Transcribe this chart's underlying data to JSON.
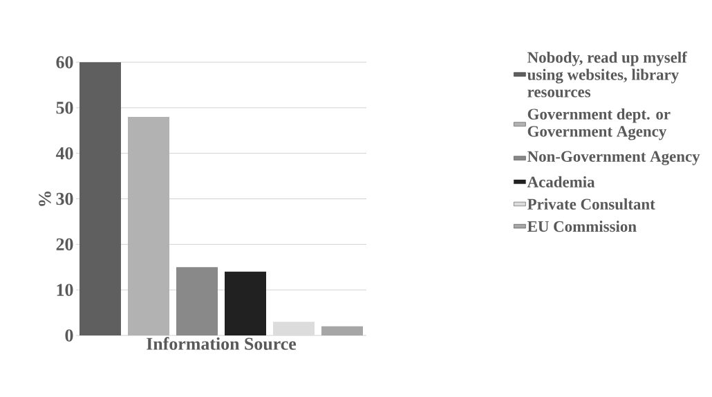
{
  "chart_data": {
    "type": "bar",
    "ylabel": "%",
    "xlabel": "Information Source",
    "categories": [
      null,
      null,
      null,
      null,
      null,
      null
    ],
    "series": [
      {
        "name": "Nobody, read up myself using websites, library resources",
        "color": "#5f5f5f",
        "values": [
          60,
          null,
          null,
          null,
          null,
          null
        ]
      },
      {
        "name": "Government dept. or Government Agency",
        "color": "#b2b2b2",
        "values": [
          null,
          48,
          null,
          null,
          null,
          null
        ]
      },
      {
        "name": "Non-Government Agency",
        "color": "#898989",
        "values": [
          null,
          null,
          15,
          null,
          null,
          null
        ]
      },
      {
        "name": "Academia",
        "color": "#212121",
        "values": [
          null,
          null,
          null,
          14,
          null,
          null
        ]
      },
      {
        "name": "Private Consultant",
        "color": "#dcdcdc",
        "values": [
          null,
          null,
          null,
          null,
          3,
          null
        ]
      },
      {
        "name": "EU Commission",
        "color": "#a6a6a6",
        "values": [
          null,
          null,
          null,
          null,
          null,
          2
        ]
      }
    ],
    "ylim": [
      0,
      60
    ],
    "yticks": [
      0,
      10,
      20,
      30,
      40,
      50,
      60
    ],
    "grid": "y",
    "legend": "right",
    "tick_labels": "y"
  }
}
